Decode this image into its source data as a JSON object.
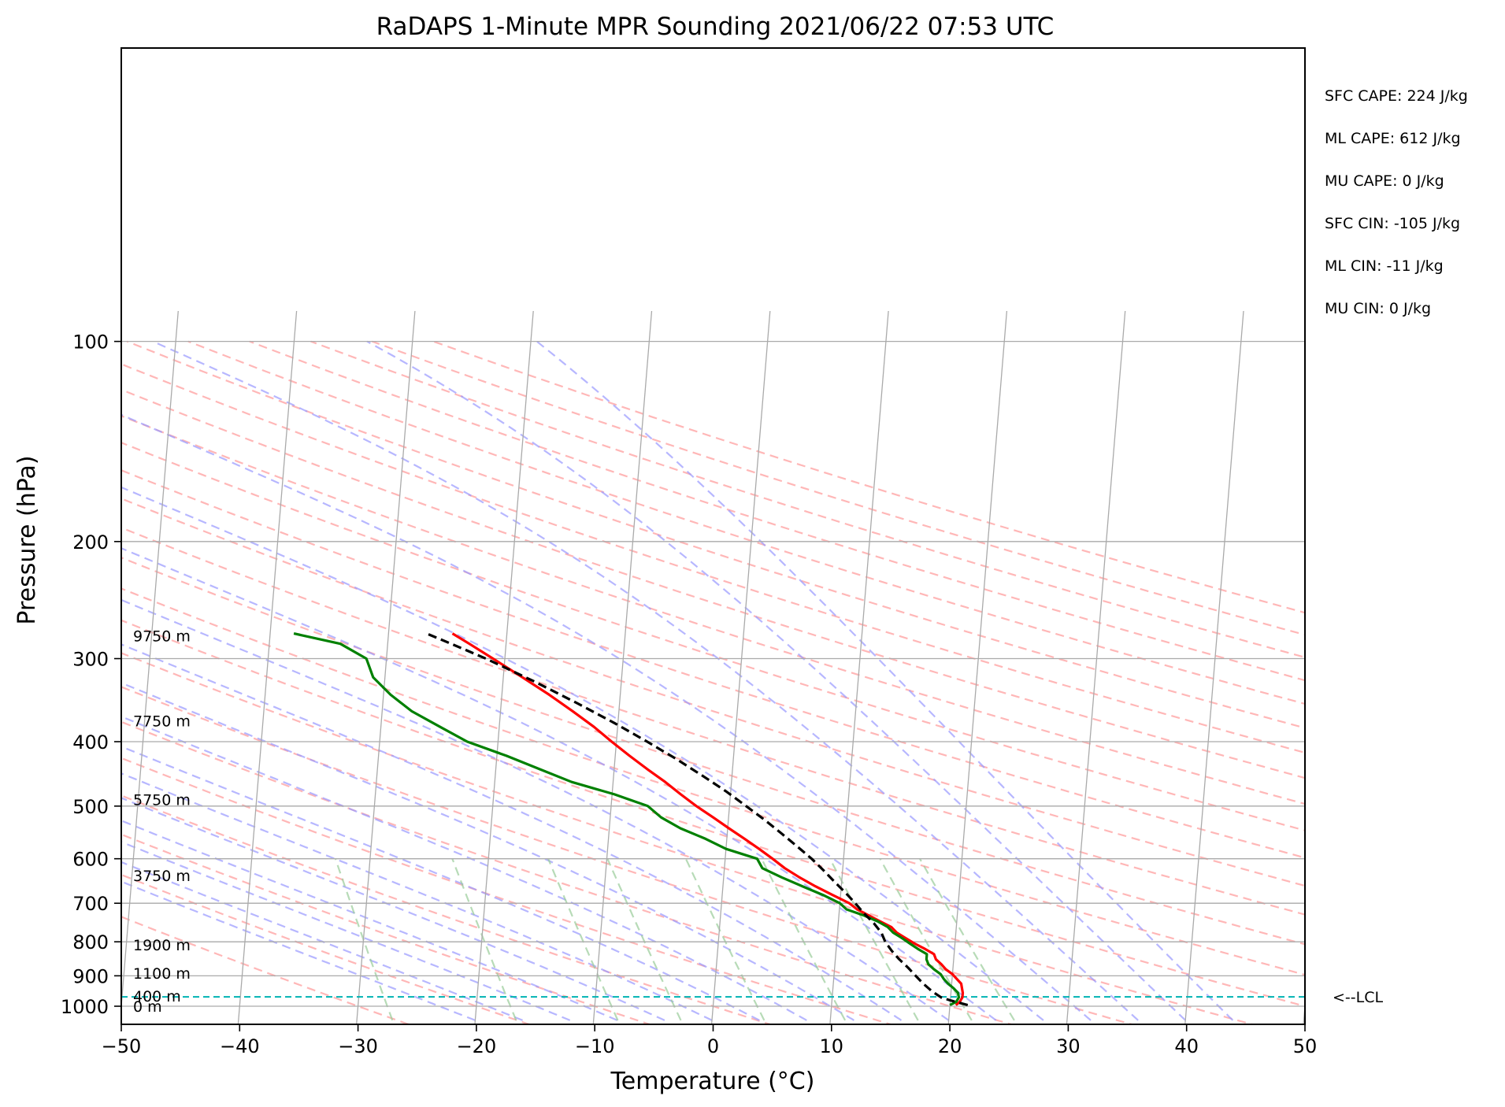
{
  "chart_data": {
    "type": "line",
    "title": "RaDAPS 1-Minute MPR Sounding 2021/06/22 07:53 UTC",
    "xlabel": "Temperature (°C)",
    "ylabel": "Pressure (hPa)",
    "xlim": [
      -50,
      50
    ],
    "ylim": [
      1050,
      100
    ],
    "yscale": "log",
    "grid": true,
    "x_ticks": [
      -50,
      -40,
      -30,
      -20,
      -10,
      0,
      10,
      20,
      30,
      40,
      50
    ],
    "x_tick_labels": [
      "−50",
      "−40",
      "−30",
      "−20",
      "−10",
      "0",
      "10",
      "20",
      "30",
      "40",
      "50"
    ],
    "y_ticks": [
      100,
      200,
      300,
      400,
      500,
      600,
      700,
      800,
      900,
      1000
    ],
    "y_tick_labels": [
      "100",
      "200",
      "300",
      "400",
      "500",
      "600",
      "700",
      "800",
      "900",
      "1000"
    ],
    "series": [
      {
        "role": "temperature",
        "color": "#ff0000",
        "p": [
          996,
          985,
          970,
          955,
          940,
          925,
          910,
          895,
          880,
          865,
          850,
          835,
          820,
          805,
          790,
          775,
          760,
          745,
          730,
          715,
          700,
          680,
          660,
          640,
          620,
          600,
          580,
          560,
          540,
          520,
          500,
          480,
          460,
          440,
          420,
          400,
          380,
          360,
          340,
          320,
          300,
          285,
          275
        ],
        "t": [
          20.5,
          20.8,
          21.0,
          21.0,
          20.9,
          20.8,
          20.4,
          20.0,
          19.4,
          19.0,
          18.5,
          18.3,
          17.5,
          16.6,
          15.8,
          15.0,
          14.5,
          13.5,
          12.5,
          11.5,
          10.8,
          9.3,
          7.8,
          6.4,
          5.1,
          4.0,
          2.8,
          1.5,
          0.1,
          -1.3,
          -2.8,
          -4.2,
          -5.6,
          -7.2,
          -8.8,
          -10.4,
          -12.0,
          -13.9,
          -16.0,
          -18.4,
          -21.0,
          -23.1,
          -24.6
        ]
      },
      {
        "role": "dewpoint",
        "color": "#008000",
        "p": [
          996,
          985,
          970,
          955,
          940,
          925,
          910,
          895,
          880,
          865,
          850,
          835,
          820,
          805,
          790,
          775,
          760,
          745,
          730,
          715,
          700,
          680,
          660,
          640,
          620,
          600,
          580,
          560,
          540,
          520,
          500,
          480,
          460,
          440,
          420,
          400,
          380,
          360,
          340,
          320,
          300,
          285,
          275
        ],
        "t": [
          20.0,
          20.5,
          20.7,
          20.6,
          20.2,
          19.7,
          19.3,
          19.0,
          18.4,
          17.9,
          17.7,
          17.7,
          16.9,
          16.2,
          15.5,
          14.7,
          14.2,
          13.3,
          12.1,
          10.6,
          10.0,
          8.5,
          6.7,
          4.9,
          3.2,
          2.7,
          0.0,
          -1.8,
          -4.0,
          -5.7,
          -6.9,
          -9.8,
          -13.5,
          -16.3,
          -19.2,
          -22.6,
          -25.0,
          -27.5,
          -29.4,
          -31.0,
          -31.7,
          -34.0,
          -38.0
        ]
      },
      {
        "role": "parcel",
        "color": "#000000",
        "dashed": true,
        "p": [
          996,
          980,
          970,
          950,
          925,
          900,
          875,
          850,
          825,
          800,
          775,
          750,
          725,
          700,
          675,
          650,
          625,
          600,
          575,
          550,
          525,
          500,
          475,
          450,
          425,
          400,
          375,
          350,
          325,
          300,
          290,
          280,
          275
        ],
        "t": [
          21.5,
          20.0,
          19.2,
          18.4,
          17.6,
          16.9,
          16.2,
          15.4,
          14.7,
          14.1,
          13.7,
          13.0,
          12.1,
          11.3,
          10.4,
          9.4,
          8.4,
          7.3,
          6.0,
          4.6,
          3.1,
          1.4,
          -0.4,
          -2.5,
          -4.8,
          -7.4,
          -10.3,
          -13.6,
          -17.3,
          -21.6,
          -23.6,
          -25.7,
          -26.8
        ]
      }
    ],
    "lcl_pressure": 968,
    "lcl_label": "<--LCL",
    "lcl_color": "#00b3b3",
    "dry_adiabat_color": "#ff9999",
    "moist_adiabat_color": "#9999ff",
    "mixing_ratio_color": "#99cc99",
    "height_labels": [
      {
        "text": "9750 m",
        "p": 277
      },
      {
        "text": "7750 m",
        "p": 372
      },
      {
        "text": "5750 m",
        "p": 489
      },
      {
        "text": "3750 m",
        "p": 636
      },
      {
        "text": "1900 m",
        "p": 808
      },
      {
        "text": "1100 m",
        "p": 892
      },
      {
        "text": "400 m",
        "p": 965
      },
      {
        "text": "0 m",
        "p": 1000
      }
    ],
    "stats": [
      "SFC CAPE: 224 J/kg",
      "ML CAPE: 612 J/kg",
      "MU CAPE: 0 J/kg",
      "SFC CIN: -105 J/kg",
      "ML CIN: -11 J/kg",
      "MU CIN: 0 J/kg"
    ]
  }
}
